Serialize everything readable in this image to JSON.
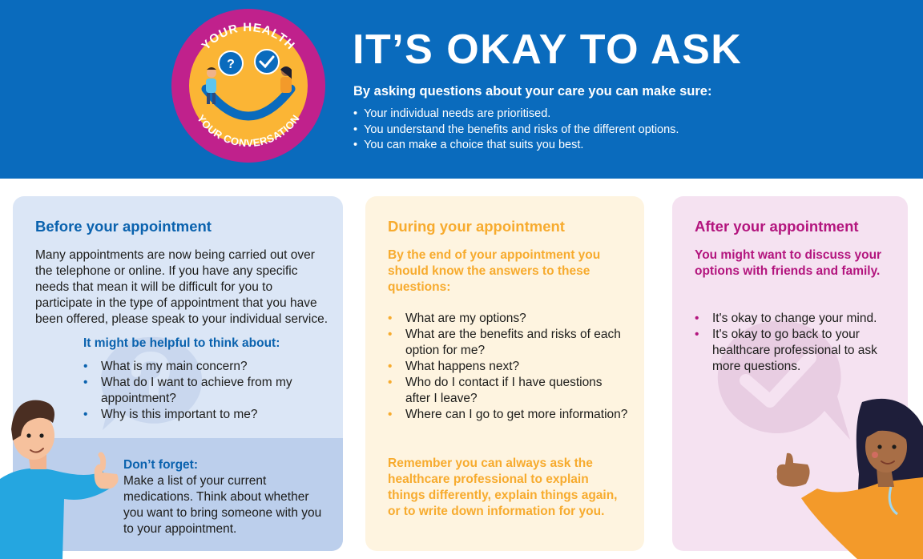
{
  "header": {
    "badge_top_text": "YOUR HEALTH",
    "badge_bottom_text": "YOUR CONVERSATION",
    "badge_question_mark": "?",
    "title": "IT’S OKAY TO ASK",
    "subtitle": "By asking questions about your care you can make sure:",
    "bullets": [
      "Your individual needs are prioritised.",
      "You understand the benefits and risks of the different options.",
      "You can make a choice that suits you best."
    ]
  },
  "before": {
    "heading": "Before your appointment",
    "intro": "Many appointments are now being carried out over the telephone or online. If you have any specific needs that mean it will be difficult for you to participate in the type of appointment that you have been offered, please speak to your individual service.",
    "think_heading": "It might be helpful to think about:",
    "think_items": [
      "What is my main concern?",
      "What do I want to achieve from my appointment?",
      "Why is this important to me?"
    ],
    "dont_forget_heading": "Don’t forget:",
    "dont_forget_text": "Make a list of your current medications. Think about whether you want to bring someone with you to your appointment."
  },
  "during": {
    "heading": "During your appointment",
    "lead": "By the end of your appointment you should know the answers to these questions:",
    "questions": [
      "What are my options?",
      "What are the benefits and risks of each option for me?",
      "What happens next?",
      "Who do I contact if I have questions after I leave?",
      "Where can I go to get more information?"
    ],
    "remember": "Remember you can always ask the healthcare professional to explain things differently, explain things again, or to write down information for you."
  },
  "after": {
    "heading": "After your appointment",
    "lead": "You might want to discuss your options with friends and family.",
    "items": [
      "It's okay to change your mind.",
      "It's okay to go back to your healthcare professional to ask more questions."
    ]
  },
  "colors": {
    "header_blue": "#0a6bbd",
    "before_blue": "#0a62ae",
    "during_amber": "#f7ab2e",
    "after_magenta": "#b3157e",
    "badge_magenta": "#c0218c",
    "smiley_yellow": "#fbb535"
  },
  "icons": [
    "smiley-badge-icon",
    "question-bubble-icon",
    "check-bubble-icon",
    "question-watermark-icon",
    "check-watermark-icon",
    "man-thumbs-up-illustration",
    "woman-thumbs-up-illustration"
  ]
}
